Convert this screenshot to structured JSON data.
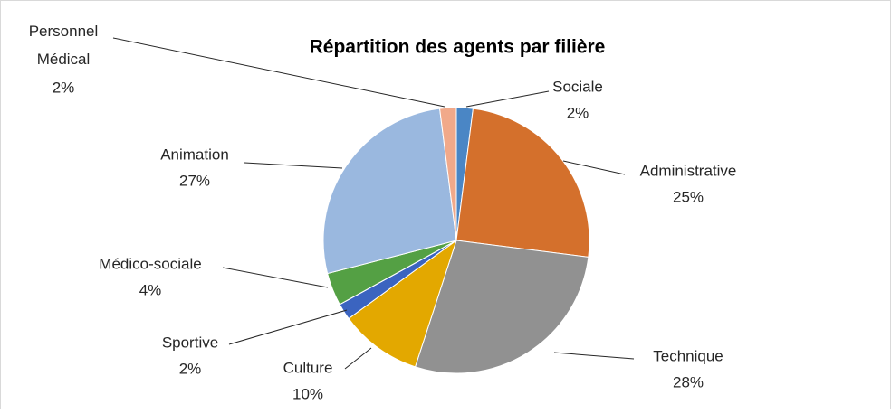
{
  "chart_data": {
    "type": "pie",
    "title": "Répartition des agents par filière",
    "categories": [
      "Sociale",
      "Administrative",
      "Technique",
      "Culture",
      "Sportive",
      "Médico-sociale",
      "Animation",
      "Personnel Médical"
    ],
    "values": [
      2,
      25,
      28,
      10,
      2,
      4,
      27,
      2
    ],
    "value_labels": [
      "2%",
      "25%",
      "28%",
      "10%",
      "2%",
      "4%",
      "27%",
      "2%"
    ],
    "colors": [
      "#4a86c5",
      "#d4702c",
      "#919191",
      "#e3a800",
      "#3b64c0",
      "#54a044",
      "#9ab8df",
      "#f1a98a"
    ]
  }
}
